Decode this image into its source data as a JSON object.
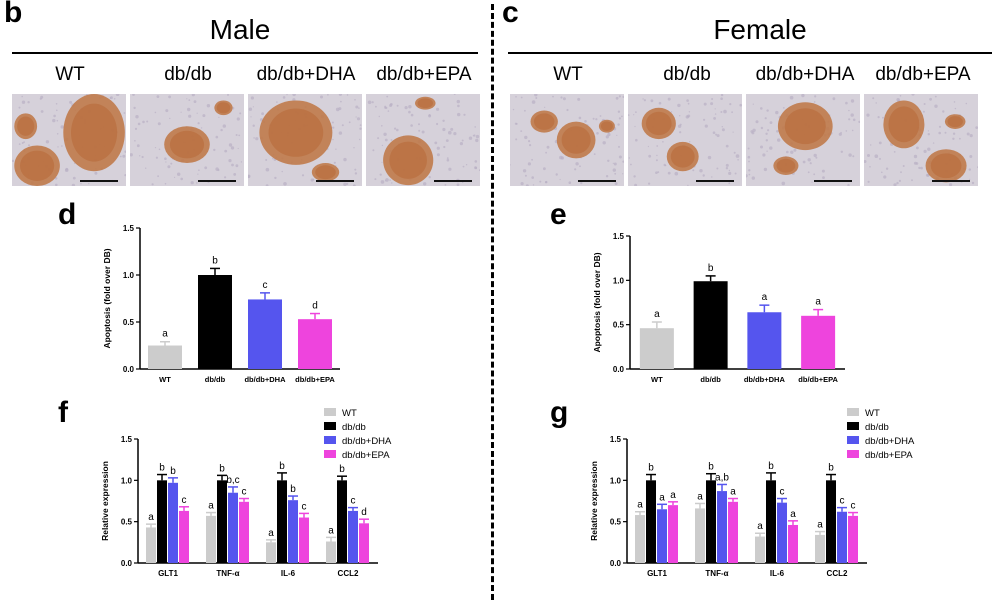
{
  "panels": {
    "b": "b",
    "c": "c",
    "d": "d",
    "e": "e",
    "f": "f",
    "g": "g"
  },
  "male_title": "Male",
  "female_title": "Female",
  "groups": [
    "WT",
    "db/db",
    "db/db+DHA",
    "db/db+EPA"
  ],
  "colors": {
    "WT": "#cccccc",
    "dbdb": "#000000",
    "DHA": "#5555ee",
    "EPA": "#ee44dd"
  },
  "chart_data": [
    {
      "id": "d",
      "type": "bar",
      "ylabel": "Apoptosis (fold over DB)",
      "ylim": [
        0,
        1.5
      ],
      "yticks": [
        "0.0",
        "0.5",
        "1.0",
        "1.5"
      ],
      "categories": [
        "WT",
        "db/db",
        "db/db+DHA",
        "db/db+EPA"
      ],
      "values": [
        0.25,
        1.0,
        0.74,
        0.53
      ],
      "errors": [
        0.04,
        0.07,
        0.07,
        0.06
      ],
      "letters": [
        "a",
        "b",
        "c",
        "d"
      ]
    },
    {
      "id": "e",
      "type": "bar",
      "ylabel": "Apoptosis (fold over DB)",
      "ylim": [
        0,
        1.5
      ],
      "yticks": [
        "0.0",
        "0.5",
        "1.0",
        "1.5"
      ],
      "categories": [
        "WT",
        "db/db",
        "db/db+DHA",
        "db/db+EPA"
      ],
      "values": [
        0.46,
        0.99,
        0.64,
        0.6
      ],
      "errors": [
        0.07,
        0.06,
        0.08,
        0.07
      ],
      "letters": [
        "a",
        "b",
        "a",
        "a"
      ]
    },
    {
      "id": "f",
      "type": "bar",
      "ylabel": "Relative expression",
      "ylim": [
        0,
        1.5
      ],
      "yticks": [
        "0.0",
        "0.5",
        "1.0",
        "1.5"
      ],
      "categories": [
        "GLT1",
        "TNF-α",
        "IL-6",
        "CCL2"
      ],
      "legend": [
        "WT",
        "db/db",
        "db/db+DHA",
        "db/db+EPA"
      ],
      "series": [
        {
          "name": "WT",
          "values": [
            0.43,
            0.57,
            0.25,
            0.26
          ],
          "errors": [
            0.04,
            0.04,
            0.03,
            0.05
          ],
          "letters": [
            "a",
            "a",
            "a",
            "a"
          ]
        },
        {
          "name": "db/db",
          "values": [
            1.0,
            1.0,
            1.0,
            1.0
          ],
          "errors": [
            0.07,
            0.06,
            0.09,
            0.05
          ],
          "letters": [
            "b",
            "b",
            "b",
            "b"
          ]
        },
        {
          "name": "db/db+DHA",
          "values": [
            0.97,
            0.85,
            0.76,
            0.63
          ],
          "errors": [
            0.06,
            0.07,
            0.05,
            0.04
          ],
          "letters": [
            "b",
            "b,c",
            "b",
            "c"
          ]
        },
        {
          "name": "db/db+EPA",
          "values": [
            0.63,
            0.74,
            0.55,
            0.48
          ],
          "errors": [
            0.05,
            0.04,
            0.05,
            0.05
          ],
          "letters": [
            "c",
            "c",
            "c",
            "d"
          ]
        }
      ]
    },
    {
      "id": "g",
      "type": "bar",
      "ylabel": "Relative expression",
      "ylim": [
        0,
        1.5
      ],
      "yticks": [
        "0.0",
        "0.5",
        "1.0",
        "1.5"
      ],
      "categories": [
        "GLT1",
        "TNF-α",
        "IL-6",
        "CCL2"
      ],
      "legend": [
        "WT",
        "db/db",
        "db/db+DHA",
        "db/db+EPA"
      ],
      "series": [
        {
          "name": "WT",
          "values": [
            0.58,
            0.66,
            0.32,
            0.34
          ],
          "errors": [
            0.04,
            0.06,
            0.04,
            0.04
          ],
          "letters": [
            "a",
            "a",
            "a",
            "a"
          ]
        },
        {
          "name": "db/db",
          "values": [
            1.0,
            1.0,
            1.0,
            1.0
          ],
          "errors": [
            0.07,
            0.08,
            0.09,
            0.07
          ],
          "letters": [
            "b",
            "b",
            "b",
            "b"
          ]
        },
        {
          "name": "db/db+DHA",
          "values": [
            0.65,
            0.87,
            0.73,
            0.62
          ],
          "errors": [
            0.06,
            0.08,
            0.05,
            0.05
          ],
          "letters": [
            "a",
            "a,b",
            "c",
            "c"
          ]
        },
        {
          "name": "db/db+EPA",
          "values": [
            0.7,
            0.74,
            0.46,
            0.57
          ],
          "errors": [
            0.04,
            0.04,
            0.05,
            0.04
          ],
          "letters": [
            "a",
            "a",
            "a",
            "c"
          ]
        }
      ]
    }
  ]
}
